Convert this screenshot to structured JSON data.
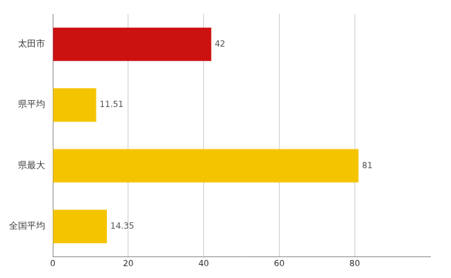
{
  "chart_data": {
    "type": "bar",
    "orientation": "horizontal",
    "categories": [
      "全国平均",
      "県最大",
      "県平均",
      "太田市"
    ],
    "values": [
      14.35,
      81,
      11.51,
      42
    ],
    "colors": [
      "#F5C400",
      "#F5C400",
      "#F5C400",
      "#CC1111"
    ],
    "xlim": [
      0,
      100
    ],
    "xticks": [
      0,
      20,
      40,
      60,
      80
    ],
    "grid": true,
    "data_labels": true
  }
}
